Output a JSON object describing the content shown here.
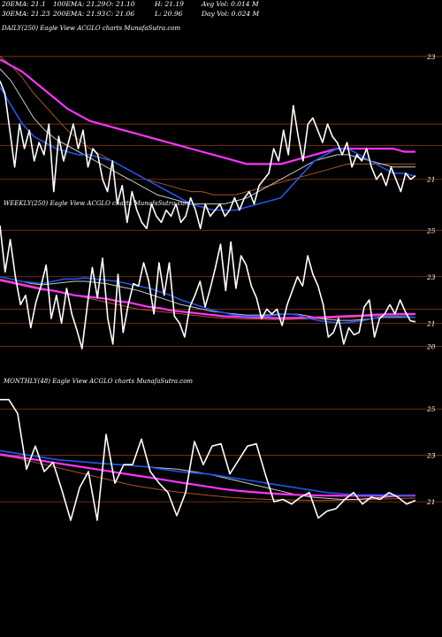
{
  "header": {
    "ema20": "20EMA: 21.1",
    "ema100": "100EMA: 21.29",
    "open": "O: 21.10",
    "high": "H: 21.19",
    "avg_vol": "Avg Vol: 0.014  M",
    "ema30": "30EMA: 21.23",
    "ema200": "200EMA: 21.93",
    "close": "C: 21.06",
    "low": "L: 20.96",
    "day_vol": "Day Vol: 0.024  M"
  },
  "colors": {
    "background": "#000000",
    "price": "#ffffff",
    "ema_fast": "#2255ee",
    "ema_slow": "#ff33ff",
    "ema_mid": "#c8c8c8",
    "ema_long": "#aa5522",
    "levels": "#8b3a1a"
  },
  "chart_data": [
    {
      "type": "line",
      "label": "DAILY(250) Eagle   View  ACGLO charts MunafaSutra.com",
      "ylim": [
        19.6,
        23.4
      ],
      "y_ticks": [
        {
          "value": 23,
          "label": "23"
        },
        {
          "value": 21.9,
          "label": ""
        },
        {
          "value": 21.55,
          "label": ""
        },
        {
          "value": 21,
          "label": "21"
        }
      ],
      "series": [
        {
          "role": "price",
          "values": [
            22.6,
            22.4,
            21.8,
            21.2,
            21.9,
            21.5,
            21.8,
            21.3,
            21.6,
            21.4,
            21.9,
            20.8,
            21.7,
            21.3,
            21.6,
            21.9,
            21.5,
            21.8,
            21.2,
            21.5,
            21.4,
            21.0,
            20.8,
            21.3,
            20.6,
            20.9,
            20.3,
            20.8,
            20.5,
            20.3,
            20.2,
            20.6,
            20.4,
            20.3,
            20.5,
            20.4,
            20.6,
            20.3,
            20.4,
            20.7,
            20.5,
            20.2,
            20.6,
            20.4,
            20.5,
            20.6,
            20.4,
            20.5,
            20.7,
            20.5,
            20.7,
            20.8,
            20.6,
            20.9,
            21.0,
            21.1,
            21.5,
            21.3,
            21.8,
            21.4,
            22.2,
            21.7,
            21.3,
            21.9,
            22.0,
            21.8,
            21.6,
            21.9,
            21.7,
            21.6,
            21.4,
            21.6,
            21.2,
            21.4,
            21.3,
            21.5,
            21.2,
            21.0,
            21.1,
            20.9,
            21.2,
            21.0,
            20.8,
            21.1,
            21.0,
            21.06
          ]
        },
        {
          "role": "ema_fast",
          "values": [
            22.5,
            22.2,
            21.9,
            21.7,
            21.6,
            21.5,
            21.45,
            21.4,
            21.4,
            21.35,
            21.3,
            21.2,
            21.1,
            21.0,
            20.9,
            20.8,
            20.7,
            20.6,
            20.55,
            20.5,
            20.5,
            20.5,
            20.55,
            20.6,
            20.65,
            20.7,
            20.9,
            21.1,
            21.3,
            21.4,
            21.5,
            21.5,
            21.4,
            21.3,
            21.2,
            21.1,
            21.1,
            21.05
          ]
        },
        {
          "role": "ema_slow",
          "values": [
            22.95,
            22.85,
            22.75,
            22.6,
            22.45,
            22.3,
            22.15,
            22.05,
            21.95,
            21.9,
            21.85,
            21.8,
            21.75,
            21.7,
            21.65,
            21.6,
            21.55,
            21.5,
            21.45,
            21.4,
            21.35,
            21.3,
            21.25,
            21.25,
            21.25,
            21.25,
            21.3,
            21.35,
            21.4,
            21.45,
            21.5,
            21.5,
            21.5,
            21.5,
            21.5,
            21.5,
            21.45,
            21.45
          ]
        },
        {
          "role": "ema_mid",
          "values": [
            22.8,
            22.6,
            22.3,
            22.0,
            21.8,
            21.65,
            21.55,
            21.45,
            21.35,
            21.25,
            21.15,
            21.05,
            20.95,
            20.85,
            20.75,
            20.7,
            20.65,
            20.6,
            20.6,
            20.6,
            20.6,
            20.65,
            20.7,
            20.8,
            20.9,
            21.0,
            21.1,
            21.2,
            21.3,
            21.35,
            21.4,
            21.4,
            21.35,
            21.3,
            21.25,
            21.2,
            21.2,
            21.2
          ]
        },
        {
          "role": "ema_long",
          "values": [
            23.0,
            22.85,
            22.65,
            22.4,
            22.2,
            22.0,
            21.8,
            21.65,
            21.5,
            21.4,
            21.3,
            21.2,
            21.1,
            21.0,
            20.95,
            20.9,
            20.85,
            20.8,
            20.8,
            20.75,
            20.75,
            20.75,
            20.8,
            20.85,
            20.9,
            20.95,
            21.0,
            21.05,
            21.1,
            21.15,
            21.2,
            21.25,
            21.25,
            21.25,
            21.25,
            21.25,
            21.25,
            21.25
          ]
        }
      ]
    },
    {
      "type": "line",
      "label": "WEEKLY(250)   Eagle   View  ACGLO charts MunafaSutra.com",
      "ylim": [
        19.6,
        26.0
      ],
      "y_ticks": [
        {
          "value": 25,
          "label": "25"
        },
        {
          "value": 23,
          "label": "23"
        },
        {
          "value": 21.6,
          "label": ""
        },
        {
          "value": 21,
          "label": "21"
        },
        {
          "value": 20,
          "label": "20"
        }
      ],
      "series": [
        {
          "role": "price",
          "values": [
            25.2,
            23.2,
            24.6,
            23.0,
            21.8,
            22.2,
            20.8,
            21.9,
            22.6,
            23.5,
            21.2,
            22.2,
            21.0,
            22.5,
            21.4,
            20.7,
            19.9,
            21.7,
            23.4,
            22.1,
            23.8,
            21.2,
            20.1,
            23.1,
            20.6,
            21.8,
            22.7,
            22.6,
            23.6,
            22.8,
            21.4,
            23.6,
            22.2,
            23.6,
            21.3,
            21.0,
            20.4,
            21.7,
            22.2,
            22.8,
            21.7,
            22.5,
            23.4,
            24.4,
            22.4,
            24.5,
            22.5,
            23.9,
            23.5,
            22.6,
            22.1,
            21.2,
            21.6,
            21.4,
            21.6,
            20.9,
            21.8,
            22.4,
            23.0,
            22.6,
            23.9,
            23.1,
            22.6,
            21.8,
            20.4,
            20.6,
            21.2,
            20.1,
            20.8,
            20.5,
            20.6,
            21.7,
            22.0,
            20.4,
            21.2,
            21.4,
            21.8,
            21.4,
            22.0,
            21.5,
            21.1,
            21.06
          ]
        },
        {
          "role": "ema_fast",
          "values": [
            23.0,
            22.9,
            22.8,
            22.75,
            22.7,
            22.8,
            22.9,
            22.9,
            22.95,
            22.9,
            22.85,
            22.8,
            22.7,
            22.6,
            22.5,
            22.35,
            22.2,
            22.0,
            21.85,
            21.7,
            21.55,
            21.45,
            21.35,
            21.3,
            21.3,
            21.3,
            21.35,
            21.4,
            21.35,
            21.2,
            21.1,
            21.05,
            21.0,
            21.05,
            21.1,
            21.2,
            21.3,
            21.3,
            21.28,
            21.25
          ]
        },
        {
          "role": "ema_slow",
          "values": [
            22.85,
            22.75,
            22.65,
            22.55,
            22.45,
            22.4,
            22.3,
            22.2,
            22.15,
            22.1,
            22.05,
            21.95,
            21.9,
            21.8,
            21.7,
            21.65,
            21.55,
            21.5,
            21.45,
            21.4,
            21.35,
            21.3,
            21.28,
            21.26,
            21.24,
            21.23,
            21.22,
            21.22,
            21.23,
            21.24,
            21.25,
            21.27,
            21.29,
            21.31,
            21.33,
            21.36,
            21.38,
            21.4,
            21.4,
            21.4
          ]
        },
        {
          "role": "ema_mid",
          "values": [
            23.0,
            22.9,
            22.8,
            22.7,
            22.65,
            22.7,
            22.75,
            22.8,
            22.8,
            22.75,
            22.7,
            22.6,
            22.5,
            22.4,
            22.25,
            22.1,
            21.95,
            21.8,
            21.7,
            21.6,
            21.5,
            21.45,
            21.4,
            21.35,
            21.35,
            21.35,
            21.38,
            21.4,
            21.38,
            21.3,
            21.2,
            21.15,
            21.12,
            21.12,
            21.15,
            21.2,
            21.25,
            21.25,
            21.25,
            21.25
          ]
        },
        {
          "role": "ema_long",
          "values": [
            22.9,
            22.8,
            22.7,
            22.6,
            22.5,
            22.4,
            22.3,
            22.2,
            22.1,
            22.0,
            21.9,
            21.8,
            21.7,
            21.6,
            21.55,
            21.5,
            21.45,
            21.4,
            21.35,
            21.3,
            21.25,
            21.22,
            21.2,
            21.18,
            21.17,
            21.16,
            21.16,
            21.16,
            21.17,
            21.18,
            21.2,
            21.22,
            21.24,
            21.26,
            21.28,
            21.3,
            21.32,
            21.34,
            21.35,
            21.36
          ]
        }
      ]
    },
    {
      "type": "line",
      "label": "MONTHLY(48)   Eagle   View  ACGLO charts MunafaSutra.com",
      "ylim": [
        19.9,
        26.0
      ],
      "y_ticks": [
        {
          "value": 25,
          "label": "25"
        },
        {
          "value": 23,
          "label": "23"
        },
        {
          "value": 21,
          "label": "21"
        }
      ],
      "series": [
        {
          "role": "price",
          "values": [
            25.4,
            25.4,
            24.8,
            22.4,
            23.4,
            22.3,
            22.7,
            21.5,
            20.2,
            21.6,
            22.3,
            20.2,
            23.9,
            21.8,
            22.6,
            22.6,
            23.7,
            22.3,
            21.8,
            21.4,
            20.4,
            21.4,
            23.6,
            22.6,
            23.4,
            23.5,
            22.2,
            22.8,
            23.4,
            23.5,
            22.2,
            21.0,
            21.1,
            20.9,
            21.2,
            21.4,
            20.3,
            20.6,
            20.7,
            21.1,
            21.4,
            20.9,
            21.2,
            21.1,
            21.4,
            21.2,
            20.9,
            21.06
          ]
        },
        {
          "role": "ema_fast",
          "values": [
            23.2,
            23.1,
            23.0,
            22.9,
            22.8,
            22.75,
            22.7,
            22.65,
            22.6,
            22.55,
            22.5,
            22.4,
            22.3,
            22.25,
            22.2,
            22.1,
            22.0,
            21.9,
            21.8,
            21.7,
            21.6,
            21.5,
            21.4,
            21.35,
            21.3,
            21.3,
            21.3,
            21.28,
            21.25
          ]
        },
        {
          "role": "ema_slow",
          "values": [
            23.05,
            22.95,
            22.85,
            22.75,
            22.65,
            22.55,
            22.45,
            22.35,
            22.25,
            22.15,
            22.05,
            21.95,
            21.85,
            21.75,
            21.65,
            21.55,
            21.48,
            21.42,
            21.37,
            21.33,
            21.3,
            21.28,
            21.27,
            21.26,
            21.26,
            21.26,
            21.27,
            21.27,
            21.27
          ]
        },
        {
          "role": "ema_mid",
          "values": [
            23.2,
            23.1,
            23.0,
            22.9,
            22.8,
            22.75,
            22.7,
            22.65,
            22.6,
            22.55,
            22.5,
            22.45,
            22.4,
            22.3,
            22.2,
            22.05,
            21.9,
            21.75,
            21.6,
            21.45,
            21.3,
            21.2,
            21.15,
            21.1,
            21.1,
            21.15,
            21.2,
            21.25,
            21.25
          ]
        },
        {
          "role": "ema_long",
          "values": [
            23.0,
            22.9,
            22.75,
            22.6,
            22.45,
            22.3,
            22.15,
            22.0,
            21.85,
            21.7,
            21.6,
            21.5,
            21.42,
            21.35,
            21.28,
            21.22,
            21.17,
            21.13,
            21.1,
            21.08,
            21.07,
            21.06,
            21.06,
            21.07,
            21.08,
            21.1,
            21.12,
            21.14,
            21.16
          ]
        }
      ]
    }
  ]
}
